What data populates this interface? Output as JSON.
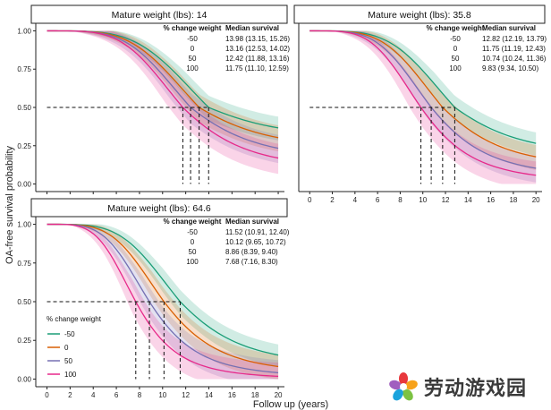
{
  "figure": {
    "ylabel": "OA-free survival probability",
    "xlabel": "Follow up (years)",
    "xlim": [
      0,
      20
    ],
    "ylim": [
      0,
      1
    ],
    "x_ticks": [
      "0",
      "2",
      "4",
      "6",
      "8",
      "10",
      "12",
      "14",
      "16",
      "18",
      "20"
    ],
    "y_ticks": [
      "0.00",
      "0.25",
      "0.50",
      "0.75",
      "1.00"
    ],
    "table_header": {
      "col1": "% change weight",
      "col2": "Median survival"
    },
    "legend": {
      "title": "% change weight",
      "entries": [
        {
          "label": "-50",
          "color": "#1b9e77"
        },
        {
          "label": "0",
          "color": "#d95f02"
        },
        {
          "label": "50",
          "color": "#7570b3"
        },
        {
          "label": "100",
          "color": "#e7298a"
        }
      ],
      "panel": 2,
      "placement": "bottom-left"
    }
  },
  "watermark": {
    "text": "劳动游戏园",
    "icon": "flower-logo-icon"
  },
  "chart_data": [
    {
      "type": "line",
      "title": "Mature weight (lbs): 14",
      "xlabel": "Follow up (years)",
      "ylabel": "OA-free survival probability",
      "xlim": [
        0,
        20
      ],
      "ylim": [
        0,
        1
      ],
      "series": [
        {
          "name": "-50",
          "color": "#1b9e77",
          "median": 13.98,
          "plateau": 0.29,
          "table": [
            "-50",
            "13.98 (13.15, 15.26)"
          ]
        },
        {
          "name": "0",
          "color": "#d95f02",
          "median": 13.16,
          "plateau": 0.22,
          "table": [
            "0",
            "13.16 (12.53, 14.02)"
          ]
        },
        {
          "name": "50",
          "color": "#7570b3",
          "median": 12.42,
          "plateau": 0.15,
          "table": [
            "50",
            "12.42 (11.88, 13.16)"
          ]
        },
        {
          "name": "100",
          "color": "#e7298a",
          "median": 11.75,
          "plateau": 0.09,
          "table": [
            "100",
            "11.75 (11.10, 12.59)"
          ]
        }
      ]
    },
    {
      "type": "line",
      "title": "Mature weight (lbs): 35.8",
      "xlabel": "Follow up (years)",
      "ylabel": "OA-free survival probability",
      "xlim": [
        0,
        20
      ],
      "ylim": [
        0,
        1
      ],
      "series": [
        {
          "name": "-50",
          "color": "#1b9e77",
          "median": 12.82,
          "plateau": 0.18,
          "table": [
            "-50",
            "12.82 (12.19, 13.79)"
          ]
        },
        {
          "name": "0",
          "color": "#d95f02",
          "median": 11.75,
          "plateau": 0.1,
          "table": [
            "0",
            "11.75 (11.19, 12.43)"
          ]
        },
        {
          "name": "50",
          "color": "#7570b3",
          "median": 10.74,
          "plateau": 0.04,
          "table": [
            "50",
            "10.74 (10.24, 11.36)"
          ]
        },
        {
          "name": "100",
          "color": "#e7298a",
          "median": 9.83,
          "plateau": 0.01,
          "table": [
            "100",
            "9.83 (9.34, 10.50)"
          ]
        }
      ]
    },
    {
      "type": "line",
      "title": "Mature weight (lbs): 64.6",
      "xlabel": "Follow up (years)",
      "ylabel": "OA-free survival probability",
      "xlim": [
        0,
        20
      ],
      "ylim": [
        0,
        1
      ],
      "series": [
        {
          "name": "-50",
          "color": "#1b9e77",
          "median": 11.52,
          "plateau": 0.08,
          "table": [
            "-50",
            "11.52 (10.91, 12.40)"
          ]
        },
        {
          "name": "0",
          "color": "#d95f02",
          "median": 10.12,
          "plateau": 0.03,
          "table": [
            "0",
            "10.12 (9.65, 10.72)"
          ]
        },
        {
          "name": "50",
          "color": "#7570b3",
          "median": 8.86,
          "plateau": 0.01,
          "table": [
            "50",
            "8.86 (8.39, 9.40)"
          ]
        },
        {
          "name": "100",
          "color": "#e7298a",
          "median": 7.68,
          "plateau": 0.0,
          "table": [
            "100",
            "7.68 (7.16, 8.30)"
          ]
        }
      ]
    }
  ]
}
